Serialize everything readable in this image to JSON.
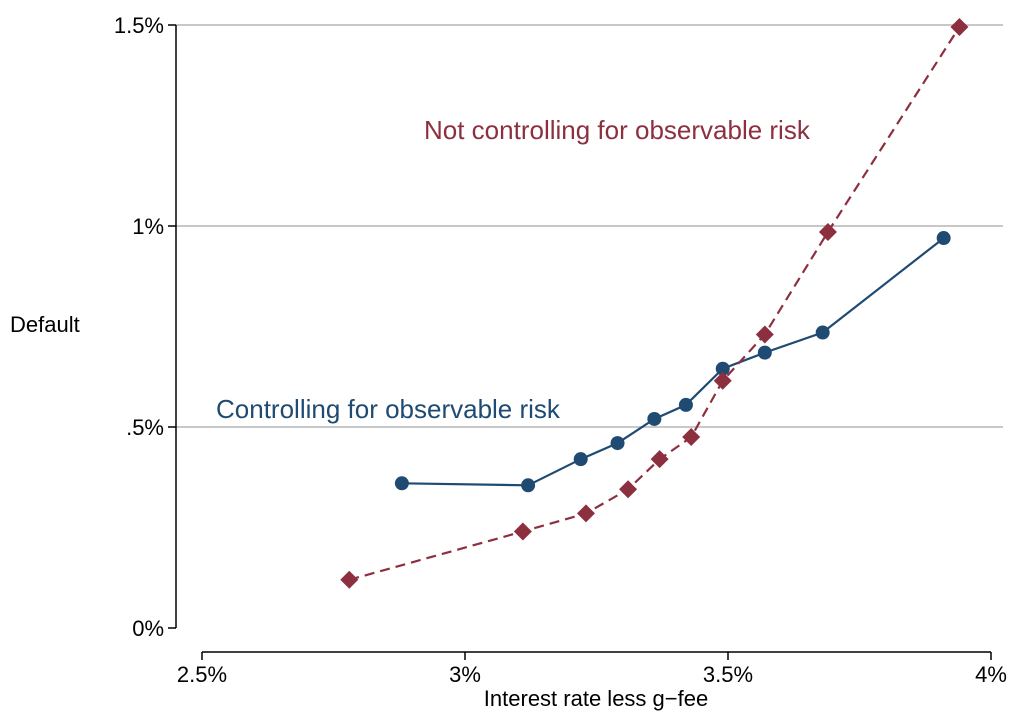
{
  "chart_data": {
    "type": "line",
    "title": "",
    "xlabel": "Interest rate less g−fee",
    "ylabel": "Default",
    "xlim": [
      2.5,
      4.0
    ],
    "ylim": [
      0,
      1.5
    ],
    "x_ticks": [
      {
        "value": 2.5,
        "label": "2.5%"
      },
      {
        "value": 3.0,
        "label": "3%"
      },
      {
        "value": 3.5,
        "label": "3.5%"
      },
      {
        "value": 4.0,
        "label": "4%"
      }
    ],
    "y_ticks": [
      {
        "value": 0,
        "label": "0%"
      },
      {
        "value": 0.5,
        "label": ".5%"
      },
      {
        "value": 1.0,
        "label": "1%"
      },
      {
        "value": 1.5,
        "label": "1.5%"
      }
    ],
    "grid": "horizontal",
    "legend": "none",
    "series": [
      {
        "name": "Controlling for observable risk",
        "color": "#1f4a72",
        "marker": "circle",
        "line": "solid",
        "x": [
          2.88,
          3.12,
          3.22,
          3.29,
          3.36,
          3.42,
          3.49,
          3.57,
          3.68,
          3.91
        ],
        "y": [
          0.36,
          0.355,
          0.42,
          0.46,
          0.52,
          0.555,
          0.645,
          0.685,
          0.735,
          0.97
        ]
      },
      {
        "name": "Not controlling for observable risk",
        "color": "#8c3040",
        "marker": "diamond",
        "line": "dashed",
        "x": [
          2.78,
          3.11,
          3.23,
          3.31,
          3.37,
          3.43,
          3.49,
          3.57,
          3.69,
          3.94
        ],
        "y": [
          0.12,
          0.24,
          0.285,
          0.345,
          0.42,
          0.475,
          0.615,
          0.73,
          0.985,
          1.495
        ]
      }
    ],
    "annotations": [
      {
        "text": "Not controlling for observable risk",
        "series": 1
      },
      {
        "text": "Controlling for observable risk",
        "series": 0
      }
    ]
  }
}
